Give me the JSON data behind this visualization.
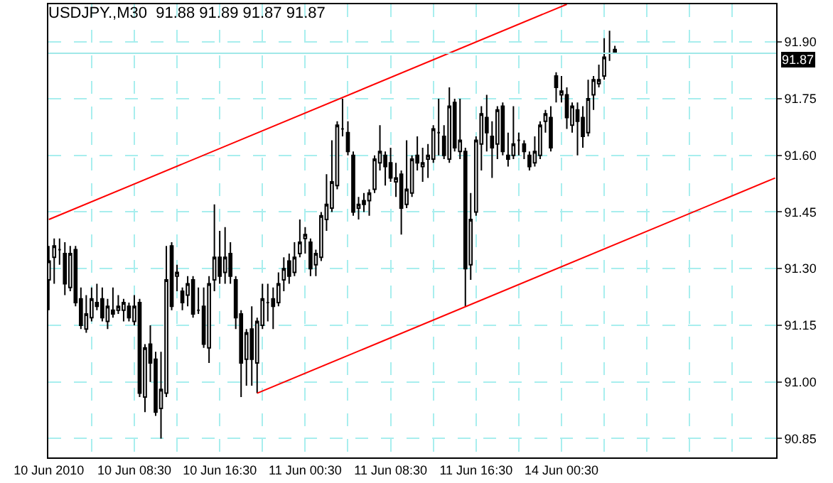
{
  "chart_data": {
    "type": "candlestick",
    "title": "USDJPY.,M30  91.88 91.89 91.87 91.87",
    "categories": [
      "10 Jun 2010",
      null,
      null,
      null,
      null,
      null,
      null,
      null,
      null,
      null,
      null,
      null,
      null,
      null,
      null,
      null,
      "10 Jun 08:30",
      null,
      null,
      null,
      null,
      null,
      null,
      null,
      null,
      null,
      null,
      null,
      null,
      null,
      null,
      null,
      "10 Jun 16:30",
      null,
      null,
      null,
      null,
      null,
      null,
      null,
      null,
      null,
      null,
      null,
      null,
      null,
      null,
      null,
      "11 Jun 00:30",
      null,
      null,
      null,
      null,
      null,
      null,
      null,
      null,
      null,
      null,
      null,
      null,
      null,
      null,
      null,
      "11 Jun 08:30",
      null,
      null,
      null,
      null,
      null,
      null,
      null,
      null,
      null,
      null,
      null,
      null,
      null,
      null,
      null,
      "11 Jun 16:30",
      null,
      null,
      null,
      null,
      null,
      null,
      null,
      null,
      null,
      null,
      null,
      null,
      null,
      null,
      null,
      "14 Jun 00:30",
      null,
      null,
      null,
      null,
      null,
      null,
      null,
      null,
      null,
      null,
      null,
      null,
      null,
      null,
      null,
      null,
      null,
      null,
      null,
      null,
      null,
      null,
      null,
      null,
      null,
      null,
      null,
      null,
      null,
      null,
      null,
      null,
      null,
      null,
      null,
      null,
      null,
      null,
      null,
      null
    ],
    "ohlc": [
      [
        91.27,
        91.36,
        91.19,
        91.32
      ],
      [
        91.33,
        91.38,
        91.26,
        91.36
      ],
      [
        91.35,
        91.38,
        91.31,
        91.35
      ],
      [
        91.34,
        91.37,
        91.23,
        91.26
      ],
      [
        91.25,
        91.36,
        91.24,
        91.34
      ],
      [
        91.35,
        91.36,
        91.2,
        91.21
      ],
      [
        91.22,
        91.25,
        91.14,
        91.15
      ],
      [
        91.14,
        91.23,
        91.13,
        91.18
      ],
      [
        91.17,
        91.25,
        91.16,
        91.22
      ],
      [
        91.21,
        91.26,
        91.19,
        91.2
      ],
      [
        91.22,
        91.25,
        91.16,
        91.17
      ],
      [
        91.16,
        91.22,
        91.14,
        91.2
      ],
      [
        91.19,
        91.25,
        91.17,
        91.18
      ],
      [
        91.19,
        91.23,
        91.18,
        91.2
      ],
      [
        91.19,
        91.22,
        91.16,
        91.21
      ],
      [
        91.2,
        91.21,
        91.16,
        91.17
      ],
      [
        91.16,
        91.23,
        91.15,
        91.2
      ],
      [
        91.21,
        91.22,
        90.96,
        90.97
      ],
      [
        90.96,
        91.1,
        90.92,
        91.09
      ],
      [
        91.1,
        91.15,
        91.0,
        91.05
      ],
      [
        91.06,
        91.08,
        90.91,
        90.92
      ],
      [
        90.93,
        91.08,
        90.85,
        90.98
      ],
      [
        90.97,
        91.36,
        90.96,
        91.27
      ],
      [
        91.36,
        91.37,
        91.19,
        91.2
      ],
      [
        91.28,
        91.31,
        91.24,
        91.29
      ],
      [
        91.24,
        91.25,
        91.19,
        91.21
      ],
      [
        91.23,
        91.28,
        91.2,
        91.26
      ],
      [
        91.27,
        91.28,
        91.17,
        91.18
      ],
      [
        91.19,
        91.25,
        91.18,
        91.19
      ],
      [
        91.2,
        91.25,
        91.09,
        91.1
      ],
      [
        91.09,
        91.28,
        91.05,
        91.26
      ],
      [
        91.27,
        91.47,
        91.24,
        91.33
      ],
      [
        91.33,
        91.4,
        91.26,
        91.28
      ],
      [
        91.29,
        91.41,
        91.26,
        91.33
      ],
      [
        91.34,
        91.37,
        91.26,
        91.28
      ],
      [
        91.27,
        91.28,
        91.14,
        91.17
      ],
      [
        91.18,
        91.19,
        90.96,
        91.05
      ],
      [
        91.06,
        91.14,
        90.99,
        91.13
      ],
      [
        91.14,
        91.2,
        90.99,
        91.06
      ],
      [
        91.05,
        91.17,
        90.97,
        91.16
      ],
      [
        91.15,
        91.26,
        91.14,
        91.22
      ],
      [
        91.21,
        91.26,
        91.16,
        91.21
      ],
      [
        91.22,
        91.25,
        91.14,
        91.2
      ],
      [
        91.21,
        91.29,
        91.2,
        91.26
      ],
      [
        91.27,
        91.33,
        91.24,
        91.3
      ],
      [
        91.32,
        91.34,
        91.26,
        91.28
      ],
      [
        91.29,
        91.37,
        91.28,
        91.33
      ],
      [
        91.34,
        91.43,
        91.33,
        91.37
      ],
      [
        91.38,
        91.41,
        91.34,
        91.39
      ],
      [
        91.37,
        91.38,
        91.28,
        91.3
      ],
      [
        91.31,
        91.35,
        91.28,
        91.34
      ],
      [
        91.33,
        91.45,
        91.32,
        91.44
      ],
      [
        91.43,
        91.55,
        91.4,
        91.47
      ],
      [
        91.46,
        91.64,
        91.45,
        91.53
      ],
      [
        91.52,
        91.69,
        91.51,
        91.68
      ],
      [
        91.67,
        91.75,
        91.65,
        91.67
      ],
      [
        91.66,
        91.69,
        91.6,
        91.61
      ],
      [
        91.6,
        91.61,
        91.44,
        91.45
      ],
      [
        91.46,
        91.49,
        91.43,
        91.47
      ],
      [
        91.48,
        91.5,
        91.45,
        91.47
      ],
      [
        91.48,
        91.51,
        91.44,
        91.5
      ],
      [
        91.51,
        91.6,
        91.5,
        91.59
      ],
      [
        91.58,
        91.68,
        91.56,
        91.61
      ],
      [
        91.6,
        91.61,
        91.52,
        91.57
      ],
      [
        91.58,
        91.62,
        91.53,
        91.54
      ],
      [
        91.53,
        91.58,
        91.49,
        91.54
      ],
      [
        91.55,
        91.56,
        91.39,
        91.46
      ],
      [
        91.47,
        91.64,
        91.46,
        91.51
      ],
      [
        91.5,
        91.6,
        91.49,
        91.59
      ],
      [
        91.6,
        91.65,
        91.56,
        91.58
      ],
      [
        91.57,
        91.62,
        91.53,
        91.58
      ],
      [
        91.59,
        91.63,
        91.54,
        91.6
      ],
      [
        91.59,
        91.68,
        91.58,
        91.67
      ],
      [
        91.66,
        91.75,
        91.6,
        91.66
      ],
      [
        91.65,
        91.68,
        91.59,
        91.6
      ],
      [
        91.59,
        91.78,
        91.58,
        91.73
      ],
      [
        91.74,
        91.75,
        91.61,
        91.62
      ],
      [
        91.61,
        91.75,
        91.59,
        91.64
      ],
      [
        91.61,
        91.62,
        91.2,
        91.3
      ],
      [
        91.31,
        91.5,
        91.27,
        91.43
      ],
      [
        91.45,
        91.65,
        91.44,
        91.64
      ],
      [
        91.63,
        91.73,
        91.56,
        91.71
      ],
      [
        91.7,
        91.76,
        91.61,
        91.66
      ],
      [
        91.65,
        91.69,
        91.54,
        91.62
      ],
      [
        91.63,
        91.73,
        91.59,
        91.72
      ],
      [
        91.73,
        91.74,
        91.6,
        91.61
      ],
      [
        91.6,
        91.66,
        91.57,
        91.59
      ],
      [
        91.6,
        91.73,
        91.59,
        91.63
      ],
      [
        91.64,
        91.66,
        91.6,
        91.64
      ],
      [
        91.63,
        91.64,
        91.59,
        91.61
      ],
      [
        91.6,
        91.61,
        91.56,
        91.57
      ],
      [
        91.58,
        91.65,
        91.57,
        91.61
      ],
      [
        91.6,
        91.69,
        91.59,
        91.68
      ],
      [
        91.69,
        91.72,
        91.66,
        91.71
      ],
      [
        91.7,
        91.73,
        91.61,
        91.62
      ],
      [
        91.81,
        91.82,
        91.74,
        91.78
      ],
      [
        91.76,
        91.81,
        91.74,
        91.77
      ],
      [
        91.76,
        91.78,
        91.67,
        91.7
      ],
      [
        91.68,
        91.74,
        91.66,
        91.73
      ],
      [
        91.72,
        91.74,
        91.6,
        91.69
      ],
      [
        91.7,
        91.73,
        91.62,
        91.65
      ],
      [
        91.66,
        91.8,
        91.65,
        91.75
      ],
      [
        91.76,
        91.81,
        91.72,
        91.8
      ],
      [
        91.79,
        91.84,
        91.78,
        91.8
      ],
      [
        91.81,
        91.91,
        91.8,
        91.86
      ],
      [
        91.87,
        91.93,
        91.85,
        91.87
      ],
      [
        91.88,
        91.89,
        91.87,
        91.87
      ],
      null,
      null,
      null,
      null,
      null,
      null,
      null,
      null,
      null,
      null,
      null,
      null,
      null,
      null,
      null,
      null,
      null,
      null,
      null,
      null,
      null,
      null,
      null,
      null,
      null,
      null,
      null,
      null,
      null,
      null
    ],
    "series": [
      {
        "type": "line",
        "color": "#ff0000",
        "values": [
          91.43,
          null,
          null,
          null,
          null,
          null,
          null,
          null,
          null,
          null,
          null,
          null,
          null,
          null,
          null,
          null,
          null,
          null,
          null,
          null,
          null,
          null,
          null,
          null,
          null,
          null,
          null,
          null,
          null,
          null,
          null,
          null,
          null,
          null,
          null,
          null,
          null,
          null,
          null,
          null,
          null,
          null,
          null,
          null,
          null,
          null,
          null,
          null,
          null,
          null,
          null,
          null,
          null,
          null,
          null,
          null,
          null,
          null,
          null,
          null,
          null,
          null,
          null,
          null,
          null,
          null,
          null,
          null,
          null,
          null,
          null,
          null,
          null,
          null,
          null,
          null,
          null,
          null,
          null,
          null,
          null,
          null,
          null,
          null,
          null,
          null,
          null,
          null,
          null,
          null,
          null,
          null,
          null,
          null,
          null,
          null,
          null,
          92.0,
          null,
          null,
          null,
          null,
          null,
          null,
          null,
          null,
          null,
          null,
          null,
          null,
          null,
          null,
          null,
          null,
          null,
          null,
          null,
          null,
          null,
          null,
          null,
          null,
          null,
          null,
          null,
          null,
          null,
          null,
          null,
          null,
          null,
          null,
          null,
          null,
          null,
          null,
          null
        ]
      },
      {
        "type": "line",
        "color": "#ff0000",
        "values": [
          null,
          null,
          null,
          null,
          null,
          null,
          null,
          null,
          null,
          null,
          null,
          null,
          null,
          null,
          null,
          null,
          null,
          null,
          null,
          null,
          null,
          null,
          null,
          null,
          null,
          null,
          null,
          null,
          null,
          null,
          null,
          null,
          null,
          null,
          null,
          null,
          null,
          null,
          null,
          90.97,
          null,
          null,
          null,
          null,
          null,
          null,
          null,
          null,
          null,
          null,
          null,
          null,
          null,
          null,
          null,
          null,
          null,
          null,
          null,
          null,
          null,
          null,
          null,
          null,
          null,
          null,
          null,
          null,
          null,
          null,
          null,
          null,
          null,
          null,
          null,
          null,
          null,
          null,
          null,
          null,
          null,
          null,
          null,
          null,
          null,
          null,
          null,
          null,
          null,
          null,
          null,
          null,
          null,
          null,
          null,
          null,
          null,
          null,
          null,
          null,
          null,
          null,
          null,
          null,
          null,
          null,
          null,
          null,
          null,
          null,
          null,
          null,
          null,
          null,
          null,
          null,
          null,
          null,
          null,
          null,
          null,
          null,
          null,
          null,
          null,
          null,
          null,
          null,
          null,
          null,
          null,
          null,
          null,
          null,
          null,
          null,
          91.54
        ]
      }
    ],
    "ylim": [
      90.8,
      92.0
    ],
    "yticks": [
      90.85,
      {
        "value": 91,
        "label": "91.00"
      },
      91.15,
      {
        "value": 91.3,
        "label": "91.30"
      },
      91.45,
      {
        "value": 91.6,
        "label": "91.60"
      },
      91.75,
      {
        "value": 91.9,
        "label": "91.90"
      }
    ],
    "ref_lines": [
      {
        "axis": "y",
        "value": 91.87,
        "label": "91.87",
        "color": "#a0e8e8"
      }
    ],
    "grid": true
  }
}
